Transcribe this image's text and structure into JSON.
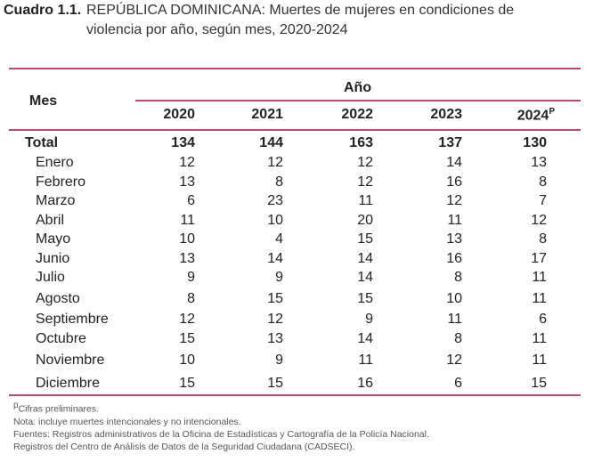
{
  "title": {
    "number": "Cuadro 1.1.",
    "line1": "REPÚBLICA DOMINICANA: Muertes de mujeres en condiciones de",
    "line2": "violencia por año, según mes, 2020-2024"
  },
  "table": {
    "row_header": "Mes",
    "year_header": "Año",
    "years": [
      "2020",
      "2021",
      "2022",
      "2023",
      "2024"
    ],
    "last_year_mark": "P",
    "total": {
      "label": "Total",
      "values": [
        "134",
        "144",
        "163",
        "137",
        "130"
      ]
    },
    "rows": [
      {
        "label": "Enero",
        "values": [
          "12",
          "12",
          "12",
          "14",
          "13"
        ]
      },
      {
        "label": "Febrero",
        "values": [
          "13",
          "8",
          "12",
          "16",
          "8"
        ]
      },
      {
        "label": "Marzo",
        "values": [
          "6",
          "23",
          "11",
          "12",
          "7"
        ]
      },
      {
        "label": "Abril",
        "values": [
          "11",
          "10",
          "20",
          "11",
          "12"
        ]
      },
      {
        "label": "Mayo",
        "values": [
          "10",
          "4",
          "15",
          "13",
          "8"
        ]
      },
      {
        "label": "Junio",
        "values": [
          "13",
          "14",
          "14",
          "16",
          "17"
        ]
      },
      {
        "label": "Julio",
        "values": [
          "9",
          "9",
          "14",
          "8",
          "11"
        ]
      },
      {
        "label": "Agosto",
        "values": [
          "8",
          "15",
          "15",
          "10",
          "11"
        ]
      },
      {
        "label": "Septiembre",
        "values": [
          "12",
          "12",
          "9",
          "11",
          "6"
        ]
      },
      {
        "label": "Octubre",
        "values": [
          "15",
          "13",
          "14",
          "8",
          "11"
        ]
      },
      {
        "label": "Noviembre",
        "values": [
          "10",
          "9",
          "11",
          "12",
          "11"
        ]
      },
      {
        "label": "Diciembre",
        "values": [
          "15",
          "15",
          "16",
          "6",
          "15"
        ]
      }
    ]
  },
  "notes": {
    "mark": "p",
    "preliminary": "Cifras preliminares.",
    "note": "Nota: incluye muertes intencionales y no intencionales.",
    "source1": "Fuentes: Registros administrativos de la Oficina de Estadísticas y Cartografía de la Policía Nacional.",
    "source2": "Registros del Centro de Análisis de Datos de la Seguridad Ciudadana (CADSECI)."
  },
  "colors": {
    "rule": "#c0486e"
  }
}
